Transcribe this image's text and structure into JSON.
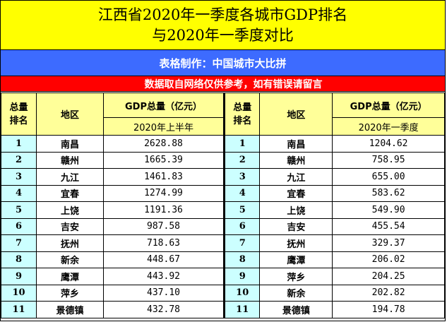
{
  "title": {
    "line1": "江西省2020年一季度各城市GDP排名",
    "line2": "与2020年一季度对比",
    "bg_color": "#ffff00"
  },
  "maker": {
    "text": "表格制作：中国城市大比拼",
    "bg_color": "#3d6bff"
  },
  "note": {
    "text": "数据取自网络仅供参考，如有错误请留言",
    "bg_color": "#ff0000"
  },
  "left_table": {
    "headers": {
      "rank": "总量排名",
      "rank_line1": "总量",
      "rank_line2": "排名",
      "region": "地区",
      "gdp": "GDP总量（亿元）",
      "period": "2020年上半年"
    },
    "rows": [
      {
        "rank": "1",
        "city": "南昌",
        "gdp": "2628.88"
      },
      {
        "rank": "2",
        "city": "赣州",
        "gdp": "1665.39"
      },
      {
        "rank": "3",
        "city": "九江",
        "gdp": "1461.83"
      },
      {
        "rank": "4",
        "city": "宜春",
        "gdp": "1274.99"
      },
      {
        "rank": "5",
        "city": "上饶",
        "gdp": "1191.36"
      },
      {
        "rank": "6",
        "city": "吉安",
        "gdp": "987.58"
      },
      {
        "rank": "7",
        "city": "抚州",
        "gdp": "718.63"
      },
      {
        "rank": "8",
        "city": "新余",
        "gdp": "448.67"
      },
      {
        "rank": "9",
        "city": "鹰潭",
        "gdp": "443.92"
      },
      {
        "rank": "10",
        "city": "萍乡",
        "gdp": "437.10"
      },
      {
        "rank": "11",
        "city": "景德镇",
        "gdp": "432.78"
      }
    ]
  },
  "right_table": {
    "headers": {
      "rank": "总量排名",
      "rank_line1": "总量",
      "rank_line2": "排名",
      "region": "地区",
      "gdp": "GDP总量（亿元）",
      "period": "2020年一季度"
    },
    "rows": [
      {
        "rank": "1",
        "city": "南昌",
        "gdp": "1204.62"
      },
      {
        "rank": "2",
        "city": "赣州",
        "gdp": "758.95"
      },
      {
        "rank": "3",
        "city": "九江",
        "gdp": "655.00"
      },
      {
        "rank": "4",
        "city": "宜春",
        "gdp": "583.62"
      },
      {
        "rank": "5",
        "city": "上饶",
        "gdp": "549.90"
      },
      {
        "rank": "6",
        "city": "吉安",
        "gdp": "455.54"
      },
      {
        "rank": "7",
        "city": "抚州",
        "gdp": "329.37"
      },
      {
        "rank": "8",
        "city": "鹰潭",
        "gdp": "206.02"
      },
      {
        "rank": "9",
        "city": "萍乡",
        "gdp": "204.25"
      },
      {
        "rank": "10",
        "city": "新余",
        "gdp": "202.82"
      },
      {
        "rank": "11",
        "city": "景德镇",
        "gdp": "194.78"
      }
    ]
  },
  "colors": {
    "header_bg": "#ffff99",
    "rank_bg": "#ccffff",
    "border": "#000000"
  }
}
